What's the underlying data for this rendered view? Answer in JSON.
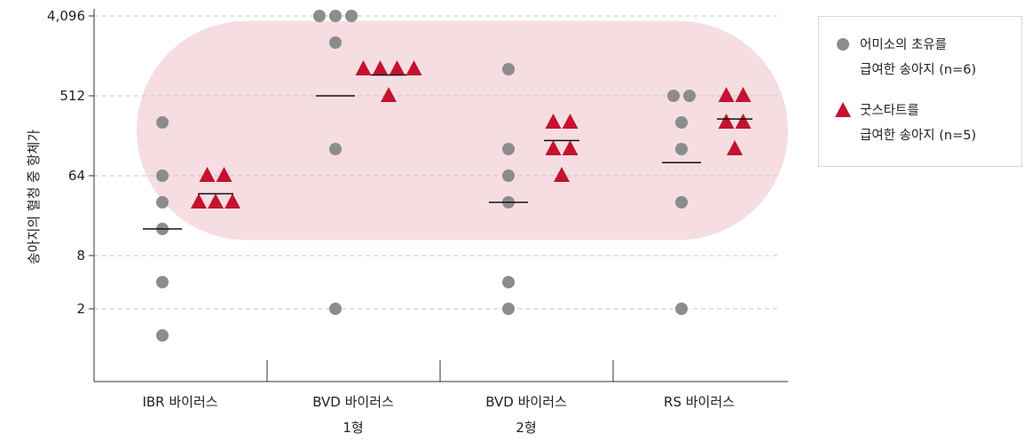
{
  "chart_data": {
    "type": "scatter",
    "ylabel": "송아지의 혈청 중 항체가",
    "y_scale": "log2",
    "ylim": [
      1,
      4096
    ],
    "y_ticks": [
      {
        "value": 2,
        "label": "2"
      },
      {
        "value": 8,
        "label": "8"
      },
      {
        "value": 64,
        "label": "64"
      },
      {
        "value": 512,
        "label": "512"
      },
      {
        "value": 4096,
        "label": "4,096"
      }
    ],
    "grid": "horizontal-dashed",
    "categories": [
      {
        "line1": "IBR 바이러스",
        "line2": ""
      },
      {
        "line1": "BVD 바이러스",
        "line2": "1형"
      },
      {
        "line1": "BVD 바이러스",
        "line2": "2형"
      },
      {
        "line1": "RS 바이러스",
        "line2": ""
      }
    ],
    "series": [
      {
        "name_line1": "어미소의 초유를",
        "name_line2": "급여한 송아지 (n=6)",
        "marker": "circle",
        "color": "#8c8c8c",
        "values": [
          [
            1,
            256,
            64,
            32,
            16,
            4
          ],
          [
            4096,
            4096,
            4096,
            2048,
            128,
            2
          ],
          [
            1024,
            128,
            64,
            32,
            4,
            2
          ],
          [
            512,
            512,
            256,
            128,
            32,
            2
          ]
        ],
        "mean": [
          16,
          512,
          32,
          90
        ]
      },
      {
        "name_line1": "굿스타트를",
        "name_line2": "급여한 송아지 (n=5)",
        "marker": "triangle",
        "color": "#c41230",
        "values": [
          [
            64,
            64,
            32,
            32,
            32
          ],
          [
            1024,
            1024,
            1024,
            1024,
            512
          ],
          [
            256,
            256,
            128,
            128,
            64
          ],
          [
            512,
            512,
            256,
            256,
            128
          ]
        ],
        "mean": [
          40,
          880,
          160,
          280
        ]
      }
    ],
    "highlight_band": {
      "from": 12,
      "to": 3600,
      "color": "#f5dde2"
    },
    "legend_position": "top-right"
  }
}
